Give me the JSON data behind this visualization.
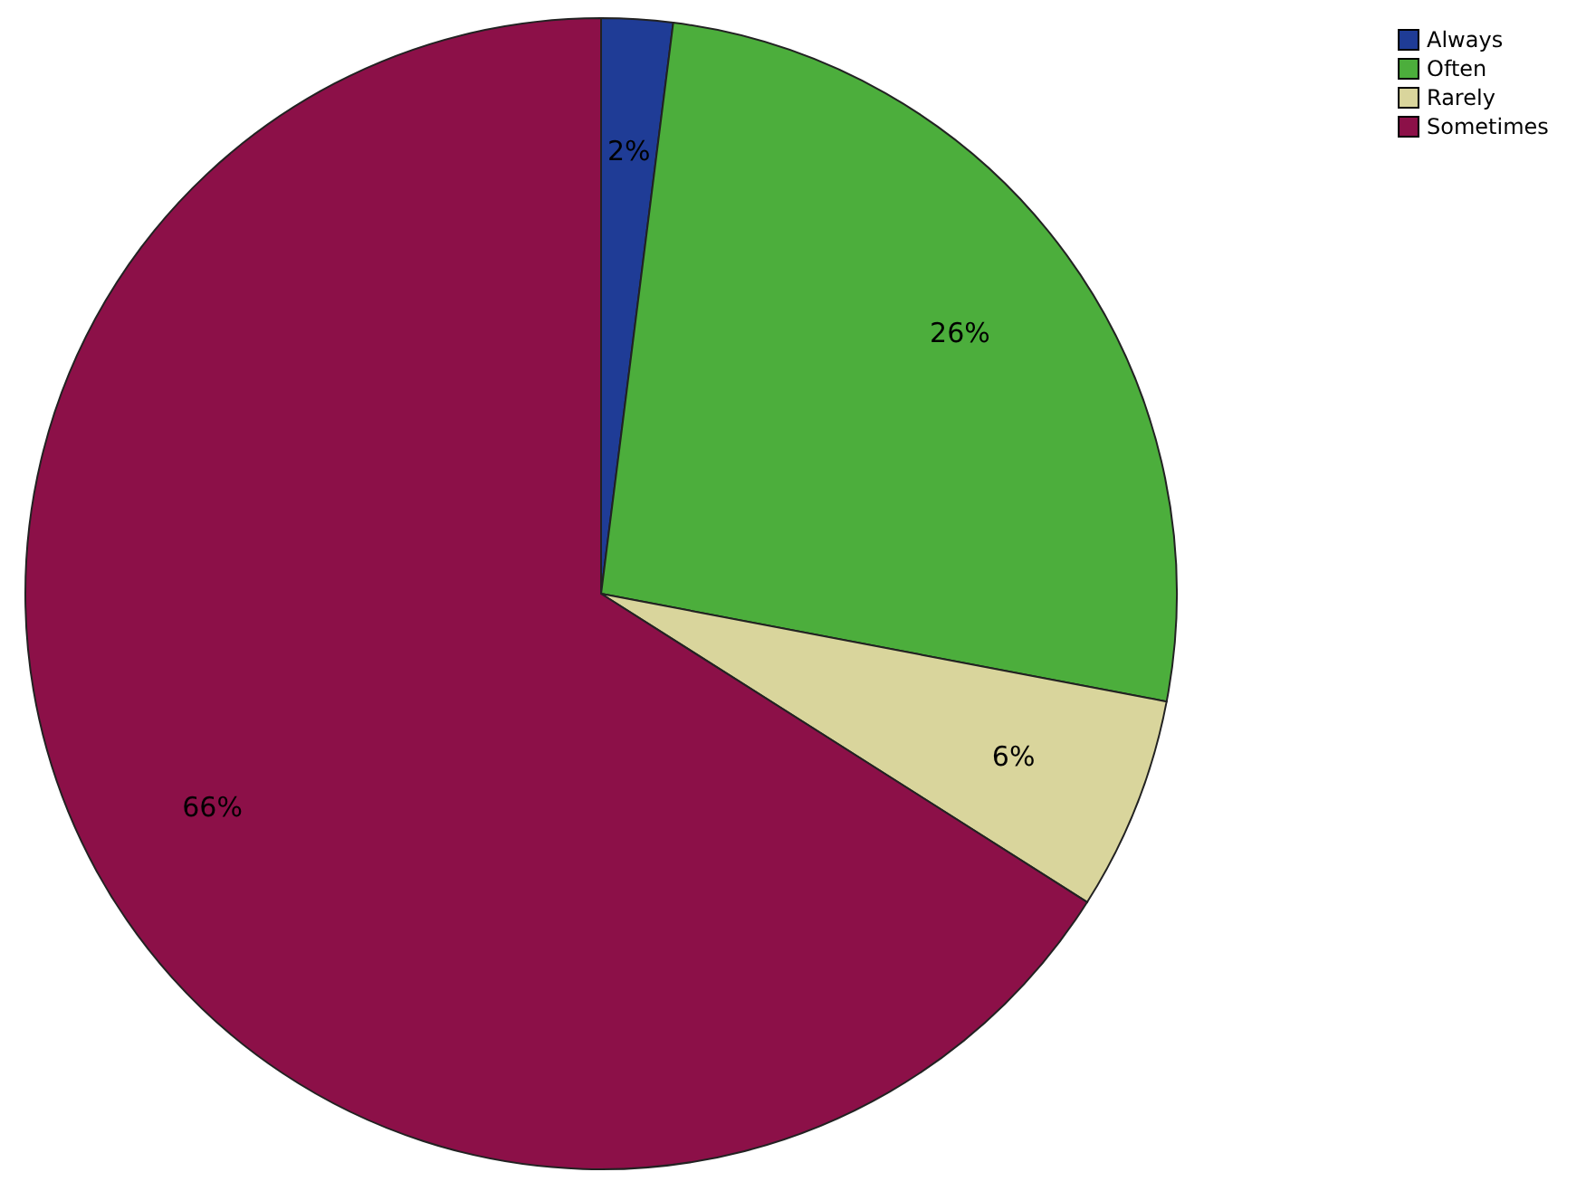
{
  "chart_data": {
    "type": "pie",
    "categories": [
      "Always",
      "Often",
      "Rarely",
      "Sometimes"
    ],
    "values": [
      2,
      26,
      6,
      66
    ],
    "value_labels": [
      "2%",
      "26%",
      "6%",
      "66%"
    ],
    "colors": [
      "#1f3c96",
      "#4cae3c",
      "#d9d59c",
      "#8c1048"
    ],
    "legend": "top right"
  }
}
